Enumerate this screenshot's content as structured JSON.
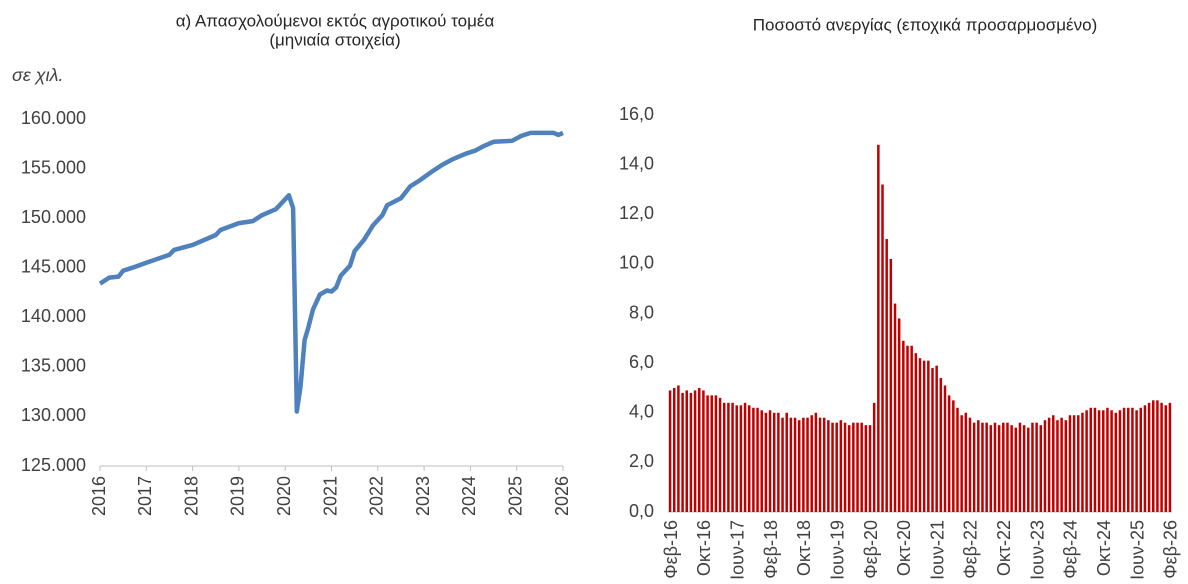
{
  "chart_data": [
    {
      "type": "line",
      "title": [
        "α) Απασχολούμενοι εκτός αγροτικού τομέα",
        "(μηνιαία στοιχεία)"
      ],
      "ylabel": "σε χιλ.",
      "color": "#4f81bd",
      "x": [
        2016.0,
        2016.2,
        2016.4,
        2016.5,
        2016.7,
        2017.0,
        2017.5,
        2017.6,
        2018.0,
        2018.5,
        2018.6,
        2019.0,
        2019.3,
        2019.5,
        2019.8,
        2020.08,
        2020.17,
        2020.25,
        2020.33,
        2020.42,
        2020.5,
        2020.6,
        2020.75,
        2020.9,
        2021.0,
        2021.1,
        2021.2,
        2021.4,
        2021.5,
        2021.7,
        2021.9,
        2022.1,
        2022.2,
        2022.5,
        2022.7,
        2022.9,
        2023.2,
        2023.4,
        2023.6,
        2023.9,
        2024.1,
        2024.3,
        2024.5,
        2024.9,
        2025.1,
        2025.3,
        2025.5,
        2025.8,
        2025.9,
        2026.0
      ],
      "values": [
        143400,
        144000,
        144100,
        144700,
        145000,
        145500,
        146300,
        146800,
        147300,
        148300,
        148800,
        149500,
        149700,
        150300,
        150900,
        152300,
        151000,
        130500,
        133000,
        137700,
        139000,
        140800,
        142300,
        142700,
        142600,
        143000,
        144200,
        145200,
        146700,
        147800,
        149300,
        150300,
        151300,
        152000,
        153200,
        153800,
        154800,
        155400,
        155900,
        156500,
        156800,
        157300,
        157700,
        157800,
        158300,
        158600,
        158600,
        158600,
        158400,
        158600
      ],
      "xlim": [
        2016,
        2026
      ],
      "xticks": [
        2016,
        2017,
        2018,
        2019,
        2020,
        2021,
        2022,
        2023,
        2024,
        2025,
        2026
      ],
      "ylim": [
        125000,
        160000
      ],
      "yticks": [
        {
          "value": 125000,
          "label": "125.000"
        },
        {
          "value": 130000,
          "label": "130.000"
        },
        {
          "value": 135000,
          "label": "135.000"
        },
        {
          "value": 140000,
          "label": "140.000"
        },
        {
          "value": 145000,
          "label": "145.000"
        },
        {
          "value": 150000,
          "label": "150.000"
        },
        {
          "value": 155000,
          "label": "155.000"
        },
        {
          "value": 160000,
          "label": "160.000"
        }
      ]
    },
    {
      "type": "bar",
      "title": [
        "Ποσοστό ανεργίας (εποχικά προσαρμοσμένο)"
      ],
      "color": "#c00000",
      "categories": [
        "Φεβ-16",
        null,
        null,
        null,
        null,
        null,
        null,
        null,
        "Οκτ-16",
        null,
        null,
        null,
        null,
        null,
        null,
        null,
        "Ιουν-17",
        null,
        null,
        null,
        null,
        null,
        null,
        null,
        "Φεβ-18",
        null,
        null,
        null,
        null,
        null,
        null,
        null,
        "Οκτ-18",
        null,
        null,
        null,
        null,
        null,
        null,
        null,
        "Ιουν-19",
        null,
        null,
        null,
        null,
        null,
        null,
        null,
        "Φεβ-20",
        null,
        null,
        null,
        null,
        null,
        null,
        null,
        "Οκτ-20",
        null,
        null,
        null,
        null,
        null,
        null,
        null,
        "Ιουν-21",
        null,
        null,
        null,
        null,
        null,
        null,
        null,
        "Φεβ-22",
        null,
        null,
        null,
        null,
        null,
        null,
        null,
        "Οκτ-22",
        null,
        null,
        null,
        null,
        null,
        null,
        null,
        "Ιουν-23",
        null,
        null,
        null,
        null,
        null,
        null,
        null,
        "Φεβ-24",
        null,
        null,
        null,
        null,
        null,
        null,
        null,
        "Οκτ-24",
        null,
        null,
        null,
        null,
        null,
        null,
        null,
        "Ιουν-25",
        null,
        null,
        null,
        null,
        null,
        null,
        null,
        "Φεβ-26"
      ],
      "values": [
        4.9,
        5.0,
        5.1,
        4.8,
        4.9,
        4.8,
        4.9,
        5.0,
        4.9,
        4.7,
        4.7,
        4.7,
        4.6,
        4.4,
        4.4,
        4.4,
        4.3,
        4.3,
        4.4,
        4.3,
        4.2,
        4.2,
        4.1,
        4.0,
        4.1,
        4.0,
        4.0,
        3.8,
        4.0,
        3.8,
        3.8,
        3.7,
        3.8,
        3.8,
        3.9,
        4.0,
        3.8,
        3.8,
        3.7,
        3.6,
        3.6,
        3.7,
        3.6,
        3.5,
        3.6,
        3.6,
        3.6,
        3.5,
        3.5,
        4.4,
        14.8,
        13.2,
        11.0,
        10.2,
        8.4,
        7.8,
        6.9,
        6.7,
        6.7,
        6.4,
        6.2,
        6.1,
        6.1,
        5.8,
        5.9,
        5.4,
        5.1,
        4.7,
        4.5,
        4.2,
        3.9,
        4.0,
        3.8,
        3.6,
        3.7,
        3.6,
        3.6,
        3.5,
        3.6,
        3.5,
        3.6,
        3.6,
        3.5,
        3.4,
        3.6,
        3.5,
        3.4,
        3.6,
        3.6,
        3.5,
        3.7,
        3.8,
        3.9,
        3.7,
        3.8,
        3.7,
        3.9,
        3.9,
        3.9,
        4.0,
        4.1,
        4.2,
        4.2,
        4.1,
        4.1,
        4.2,
        4.1,
        4.0,
        4.1,
        4.2,
        4.2,
        4.2,
        4.1,
        4.2,
        4.3,
        4.4,
        4.5,
        4.5,
        4.4,
        4.3,
        4.4
      ],
      "ylim": [
        0,
        16
      ],
      "yticks": [
        {
          "value": 0,
          "label": "0,0"
        },
        {
          "value": 2,
          "label": "2,0"
        },
        {
          "value": 4,
          "label": "4,0"
        },
        {
          "value": 6,
          "label": "6,0"
        },
        {
          "value": 8,
          "label": "8,0"
        },
        {
          "value": 10,
          "label": "10,0"
        },
        {
          "value": 12,
          "label": "12,0"
        },
        {
          "value": 14,
          "label": "14,0"
        },
        {
          "value": 16,
          "label": "16,0"
        }
      ]
    }
  ]
}
